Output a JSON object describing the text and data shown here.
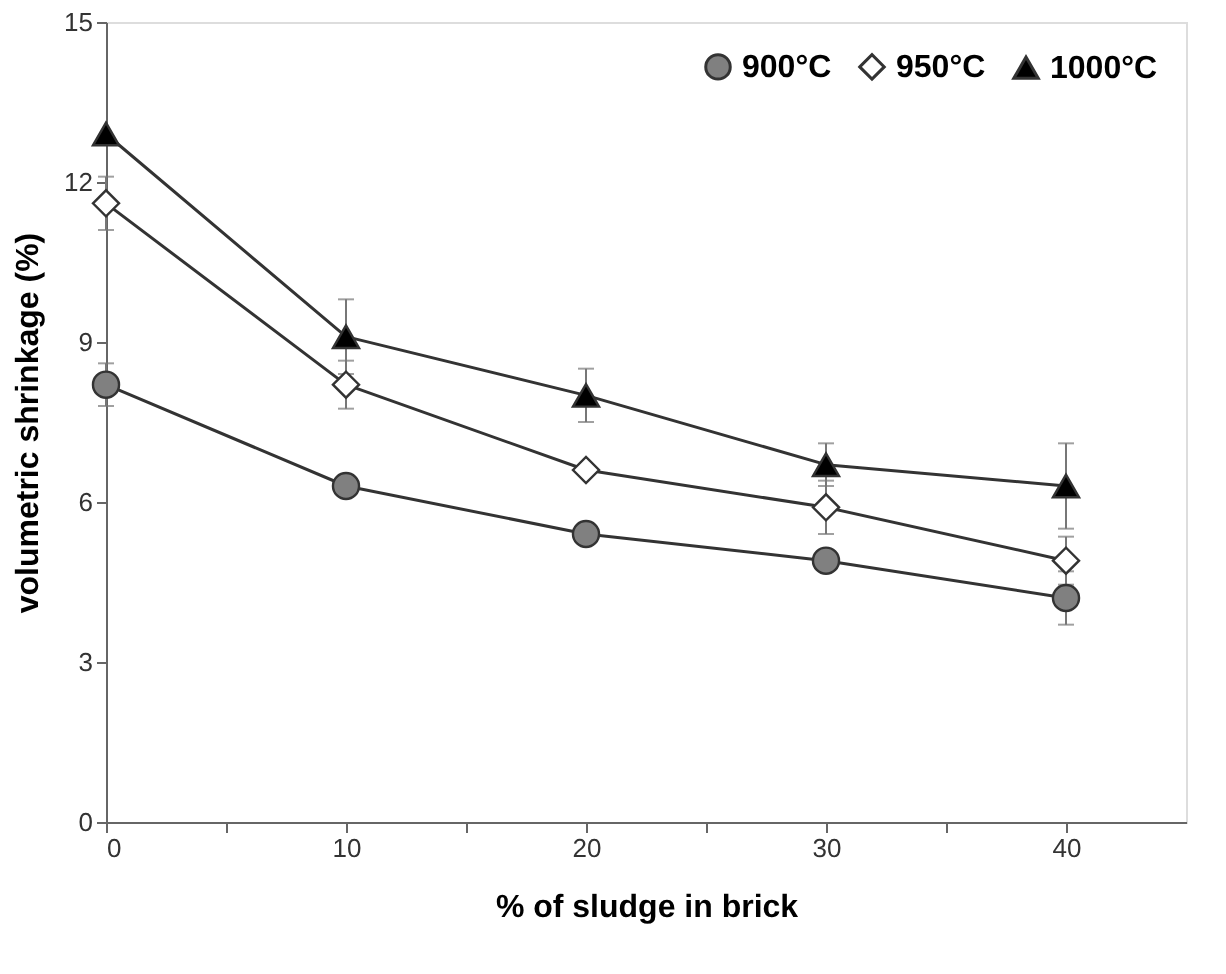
{
  "chart_data": {
    "type": "line",
    "xlabel": "% of sludge in brick",
    "ylabel": "volumetric shrinkage (%)",
    "x": [
      0,
      10,
      20,
      30,
      40
    ],
    "xlim": [
      0,
      45
    ],
    "xticks": [
      0,
      {
        "value": 5,
        "label": null
      },
      10,
      {
        "value": 15,
        "label": null
      },
      20,
      {
        "value": 25,
        "label": null
      },
      30,
      {
        "value": 35,
        "label": null
      },
      40
    ],
    "ylim": [
      0,
      15
    ],
    "yticks": [
      0,
      3,
      6,
      9,
      12,
      15
    ],
    "series": [
      {
        "name": "900°C",
        "color": "#808080",
        "marker": "circle",
        "values": [
          8.2,
          6.3,
          5.4,
          4.9,
          4.2
        ],
        "errors": [
          0.4,
          null,
          null,
          null,
          0.5
        ]
      },
      {
        "name": "950°C",
        "color": "#ffffff",
        "marker": "diamond",
        "values": [
          11.6,
          8.2,
          6.6,
          5.9,
          4.9
        ],
        "errors": [
          0.5,
          0.45,
          null,
          0.5,
          0.45
        ]
      },
      {
        "name": "1000°C",
        "color": "#000000",
        "marker": "triangle",
        "values": [
          12.9,
          9.1,
          8.0,
          6.7,
          6.3
        ],
        "errors": [
          null,
          0.7,
          0.5,
          0.4,
          0.8
        ]
      }
    ],
    "legend": "top right",
    "grid": false,
    "line_style": "solid"
  }
}
